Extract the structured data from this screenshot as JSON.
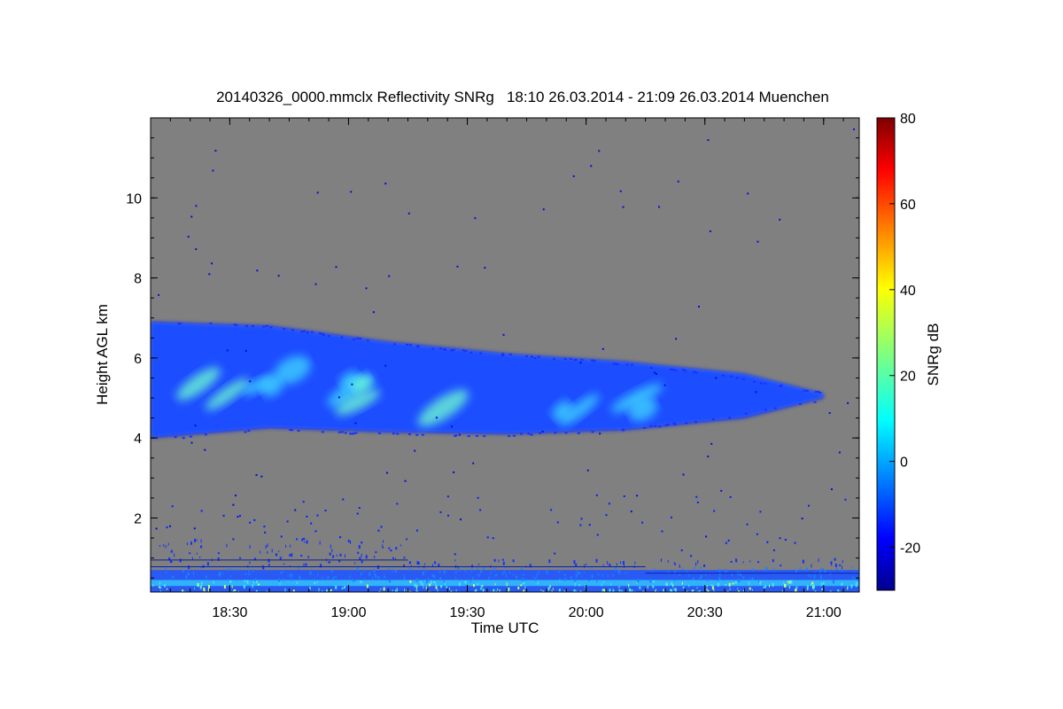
{
  "chart_data": {
    "type": "heatmap",
    "title": "20140326_0000.mmclx Reflectivity SNRg   18:10 26.03.2014 - 21:09 26.03.2014 Muenchen",
    "xlabel": "Time UTC",
    "ylabel": "Height AGL km",
    "xlim": [
      "18:10",
      "21:09"
    ],
    "ylim": [
      0.15,
      12
    ],
    "x_ticks": [
      "18:30",
      "19:00",
      "19:30",
      "20:00",
      "20:30",
      "21:00"
    ],
    "y_ticks": [
      "2",
      "4",
      "6",
      "8",
      "10"
    ],
    "background_color": "#808080",
    "colorbar": {
      "label": "SNRg dB",
      "range": [
        -30,
        80
      ],
      "ticks": [
        "-20",
        "0",
        "20",
        "40",
        "60",
        "80"
      ],
      "colormap": "jet"
    },
    "features": {
      "cloud_layer": {
        "time_start": "18:10",
        "time_end": "21:00",
        "top_km": [
          6.9,
          6.8,
          6.4,
          6.1,
          5.9,
          5.6,
          5.1
        ],
        "base_km": [
          4.0,
          4.25,
          4.15,
          4.1,
          4.2,
          4.5,
          5.0
        ],
        "top_km_times": [
          "18:10",
          "18:40",
          "19:10",
          "19:40",
          "20:10",
          "20:40",
          "21:00"
        ],
        "peak_snr_db": 15
      },
      "ground_clutter": {
        "height_range_km": [
          0.15,
          1.0
        ],
        "time_range": [
          "18:10",
          "21:09"
        ]
      }
    }
  }
}
